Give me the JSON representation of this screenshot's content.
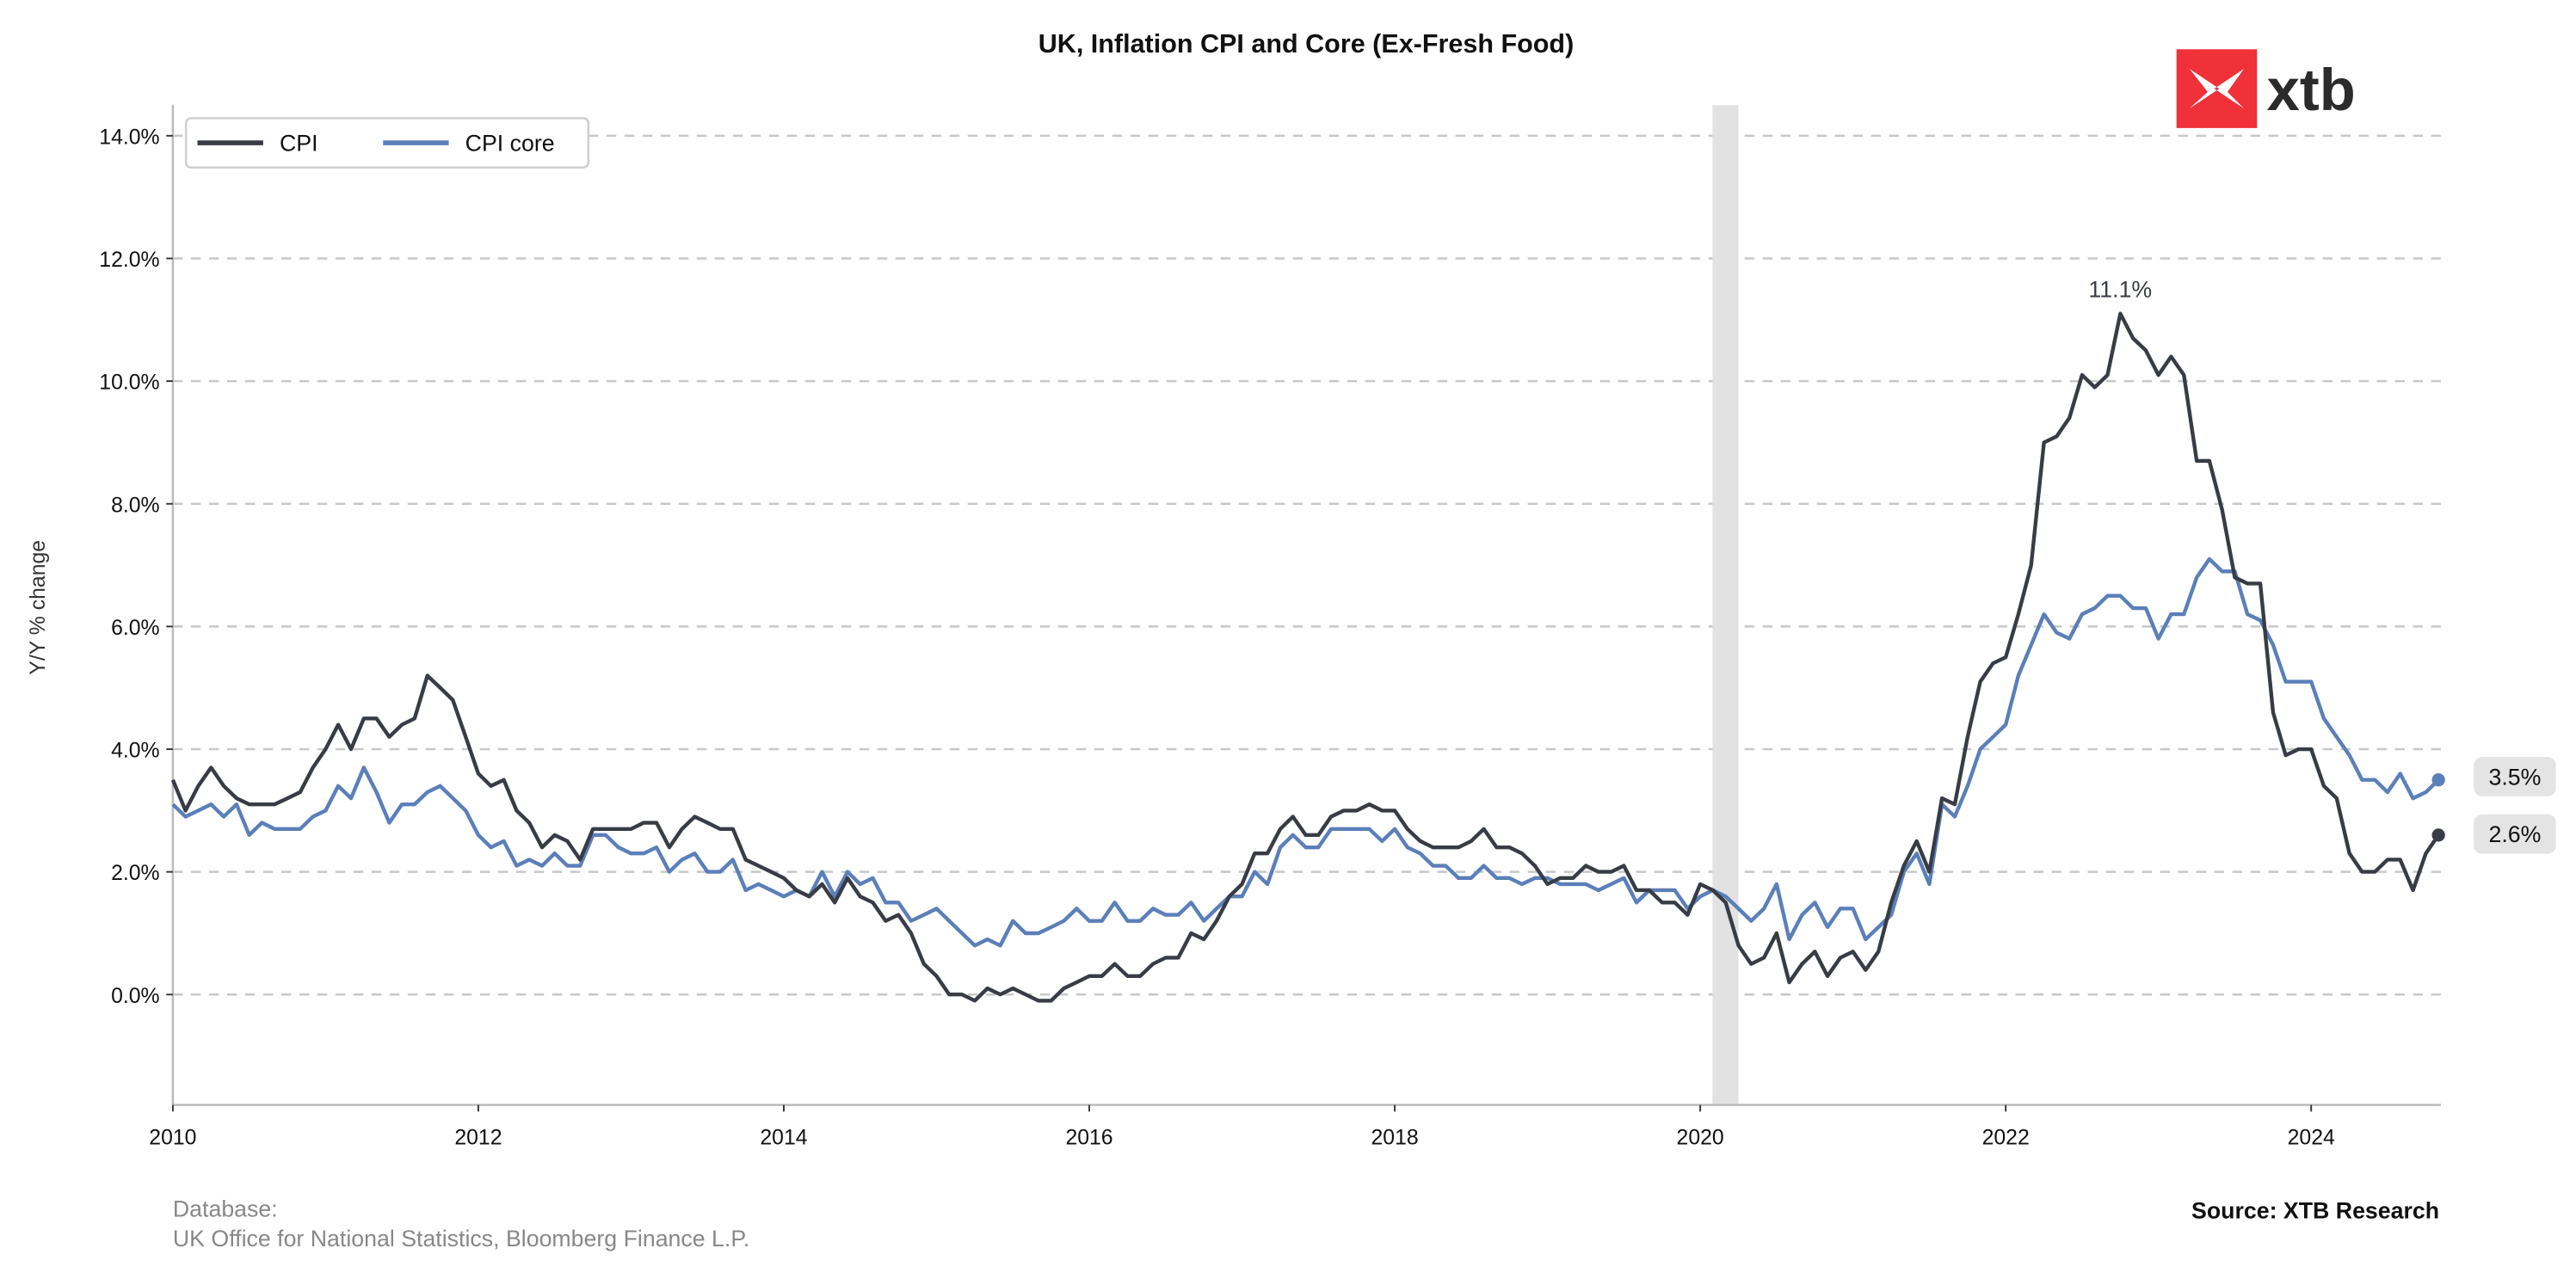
{
  "chart_data": {
    "type": "line",
    "title": "UK, Inflation CPI and Core (Ex-Fresh Food)",
    "xlabel": "",
    "ylabel": "Y/Y % change",
    "x_start": "2010-01",
    "frequency": "monthly",
    "xlim": [
      2010.0,
      2024.9
    ],
    "ylim": [
      -1.8,
      14.5
    ],
    "x_ticks": [
      2010,
      2012,
      2014,
      2016,
      2018,
      2020,
      2022,
      2024
    ],
    "x_tick_labels": [
      "2010",
      "2012",
      "2014",
      "2016",
      "2018",
      "2020",
      "2022",
      "2024"
    ],
    "y_ticks": [
      0,
      2,
      4,
      6,
      8,
      10,
      12,
      14
    ],
    "y_tick_labels": [
      "0.0%",
      "2.0%",
      "4.0%",
      "6.0%",
      "8.0%",
      "10.0%",
      "12.0%",
      "14.0%"
    ],
    "grid": "horizontal-dashed",
    "legend_position": "top-left",
    "shaded_period": [
      2020.08,
      2020.25
    ],
    "series": [
      {
        "name": "CPI",
        "color": "#383c45",
        "values": [
          3.5,
          3.0,
          3.4,
          3.7,
          3.4,
          3.2,
          3.1,
          3.1,
          3.1,
          3.2,
          3.3,
          3.7,
          4.0,
          4.4,
          4.0,
          4.5,
          4.5,
          4.2,
          4.4,
          4.5,
          5.2,
          5.0,
          4.8,
          4.2,
          3.6,
          3.4,
          3.5,
          3.0,
          2.8,
          2.4,
          2.6,
          2.5,
          2.2,
          2.7,
          2.7,
          2.7,
          2.7,
          2.8,
          2.8,
          2.4,
          2.7,
          2.9,
          2.8,
          2.7,
          2.7,
          2.2,
          2.1,
          2.0,
          1.9,
          1.7,
          1.6,
          1.8,
          1.5,
          1.9,
          1.6,
          1.5,
          1.2,
          1.3,
          1.0,
          0.5,
          0.3,
          0.0,
          0.0,
          -0.1,
          0.1,
          0.0,
          0.1,
          0.0,
          -0.1,
          -0.1,
          0.1,
          0.2,
          0.3,
          0.3,
          0.5,
          0.3,
          0.3,
          0.5,
          0.6,
          0.6,
          1.0,
          0.9,
          1.2,
          1.6,
          1.8,
          2.3,
          2.3,
          2.7,
          2.9,
          2.6,
          2.6,
          2.9,
          3.0,
          3.0,
          3.1,
          3.0,
          3.0,
          2.7,
          2.5,
          2.4,
          2.4,
          2.4,
          2.5,
          2.7,
          2.4,
          2.4,
          2.3,
          2.1,
          1.8,
          1.9,
          1.9,
          2.1,
          2.0,
          2.0,
          2.1,
          1.7,
          1.7,
          1.5,
          1.5,
          1.3,
          1.8,
          1.7,
          1.5,
          0.8,
          0.5,
          0.6,
          1.0,
          0.2,
          0.5,
          0.7,
          0.3,
          0.6,
          0.7,
          0.4,
          0.7,
          1.5,
          2.1,
          2.5,
          2.0,
          3.2,
          3.1,
          4.2,
          5.1,
          5.4,
          5.5,
          6.2,
          7.0,
          9.0,
          9.1,
          9.4,
          10.1,
          9.9,
          10.1,
          11.1,
          10.7,
          10.5,
          10.1,
          10.4,
          10.1,
          8.7,
          8.7,
          7.9,
          6.8,
          6.7,
          6.7,
          4.6,
          3.9,
          4.0,
          4.0,
          3.4,
          3.2,
          2.3,
          2.0,
          2.0,
          2.2,
          2.2,
          1.7,
          2.3,
          2.6
        ]
      },
      {
        "name": "CPI core",
        "color": "#5b7fb9",
        "values": [
          3.1,
          2.9,
          3.0,
          3.1,
          2.9,
          3.1,
          2.6,
          2.8,
          2.7,
          2.7,
          2.7,
          2.9,
          3.0,
          3.4,
          3.2,
          3.7,
          3.3,
          2.8,
          3.1,
          3.1,
          3.3,
          3.4,
          3.2,
          3.0,
          2.6,
          2.4,
          2.5,
          2.1,
          2.2,
          2.1,
          2.3,
          2.1,
          2.1,
          2.6,
          2.6,
          2.4,
          2.3,
          2.3,
          2.4,
          2.0,
          2.2,
          2.3,
          2.0,
          2.0,
          2.2,
          1.7,
          1.8,
          1.7,
          1.6,
          1.7,
          1.6,
          2.0,
          1.6,
          2.0,
          1.8,
          1.9,
          1.5,
          1.5,
          1.2,
          1.3,
          1.4,
          1.2,
          1.0,
          0.8,
          0.9,
          0.8,
          1.2,
          1.0,
          1.0,
          1.1,
          1.2,
          1.4,
          1.2,
          1.2,
          1.5,
          1.2,
          1.2,
          1.4,
          1.3,
          1.3,
          1.5,
          1.2,
          1.4,
          1.6,
          1.6,
          2.0,
          1.8,
          2.4,
          2.6,
          2.4,
          2.4,
          2.7,
          2.7,
          2.7,
          2.7,
          2.5,
          2.7,
          2.4,
          2.3,
          2.1,
          2.1,
          1.9,
          1.9,
          2.1,
          1.9,
          1.9,
          1.8,
          1.9,
          1.9,
          1.8,
          1.8,
          1.8,
          1.7,
          1.8,
          1.9,
          1.5,
          1.7,
          1.7,
          1.7,
          1.4,
          1.6,
          1.7,
          1.6,
          1.4,
          1.2,
          1.4,
          1.8,
          0.9,
          1.3,
          1.5,
          1.1,
          1.4,
          1.4,
          0.9,
          1.1,
          1.3,
          2.0,
          2.3,
          1.8,
          3.1,
          2.9,
          3.4,
          4.0,
          4.2,
          4.4,
          5.2,
          5.7,
          6.2,
          5.9,
          5.8,
          6.2,
          6.3,
          6.5,
          6.5,
          6.3,
          6.3,
          5.8,
          6.2,
          6.2,
          6.8,
          7.1,
          6.9,
          6.9,
          6.2,
          6.1,
          5.7,
          5.1,
          5.1,
          5.1,
          4.5,
          4.2,
          3.9,
          3.5,
          3.5,
          3.3,
          3.6,
          3.2,
          3.3,
          3.5
        ]
      }
    ],
    "annotations": {
      "peak_label": "11.1%",
      "last_cpi_label": "2.6%",
      "last_core_label": "3.5%"
    }
  },
  "legend": {
    "cpi": "CPI",
    "core": "CPI core"
  },
  "logo": {
    "text": "xtb",
    "color": "#f0313a"
  },
  "footer": {
    "database_label": "Database:",
    "database_sources": "UK Office for National Statistics, Bloomberg Finance L.P.",
    "source": "Source: XTB Research"
  }
}
